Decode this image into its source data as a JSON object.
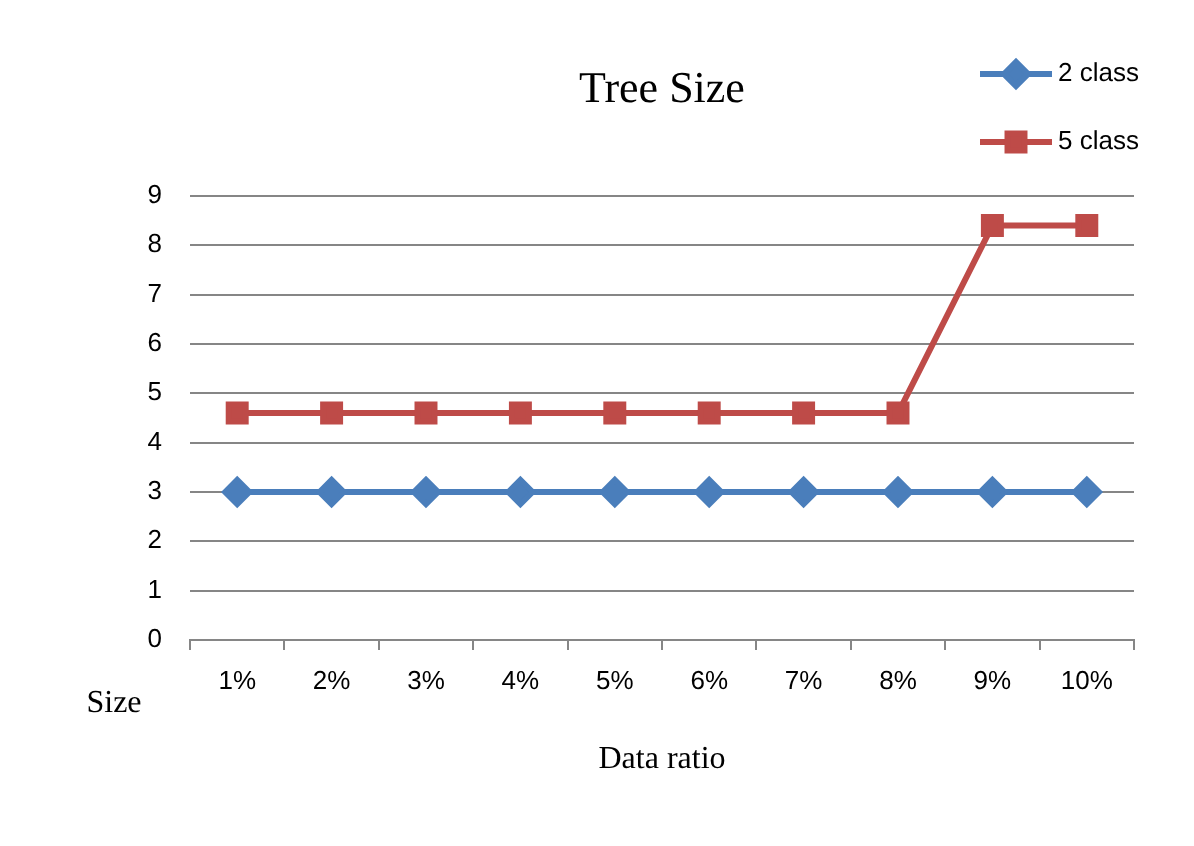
{
  "chart_data": {
    "type": "line",
    "title": "Tree Size",
    "xlabel": "Data ratio",
    "ylabel": "Size",
    "categories": [
      "1%",
      "2%",
      "3%",
      "4%",
      "5%",
      "6%",
      "7%",
      "8%",
      "9%",
      "10%"
    ],
    "series": [
      {
        "name": "2 class",
        "color": "#4a7ebb",
        "marker": "diamond",
        "values": [
          3,
          3,
          3,
          3,
          3,
          3,
          3,
          3,
          3,
          3
        ]
      },
      {
        "name": "5 class",
        "color": "#be4b48",
        "marker": "square",
        "values": [
          4.6,
          4.6,
          4.6,
          4.6,
          4.6,
          4.6,
          4.6,
          4.6,
          8.4,
          8.4
        ]
      }
    ],
    "ylim": [
      0,
      9
    ],
    "yticks": [
      0,
      1,
      2,
      3,
      4,
      5,
      6,
      7,
      8,
      9
    ],
    "grid": "y",
    "legend": "top right"
  }
}
